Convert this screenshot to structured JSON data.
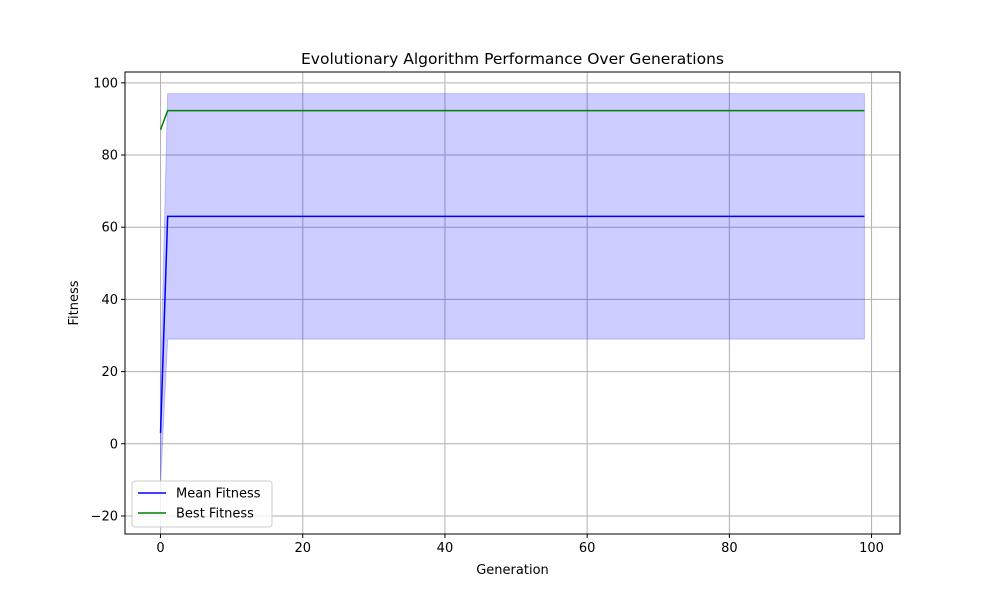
{
  "chart_data": {
    "type": "line",
    "title": "Evolutionary Algorithm Performance Over Generations",
    "xlabel": "Generation",
    "ylabel": "Fitness",
    "xlim": [
      -5,
      104
    ],
    "ylim": [
      -25,
      103
    ],
    "xticks": [
      0,
      20,
      40,
      60,
      80,
      100
    ],
    "yticks": [
      -20,
      0,
      20,
      40,
      60,
      80,
      100
    ],
    "grid": true,
    "legend_position": "lower left",
    "series": [
      {
        "name": "Mean Fitness",
        "color": "#0000ff",
        "x": [
          0,
          1,
          99
        ],
        "y": [
          3,
          63,
          63
        ]
      },
      {
        "name": "Best Fitness",
        "color": "#008000",
        "x": [
          0,
          1,
          99
        ],
        "y": [
          87,
          92.3,
          92.3
        ]
      }
    ],
    "band": {
      "color": "#0000ff",
      "x": [
        0,
        1,
        99
      ],
      "lower": [
        -11,
        29,
        29
      ],
      "upper": [
        17,
        97,
        97
      ]
    }
  }
}
